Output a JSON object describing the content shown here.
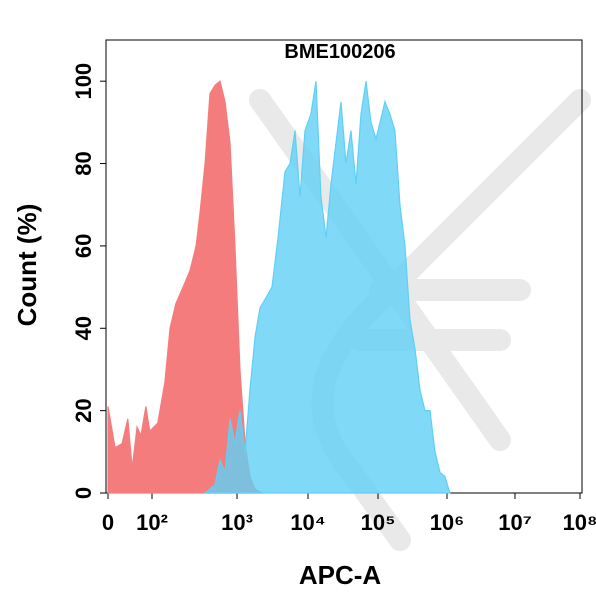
{
  "chart_data": {
    "type": "area",
    "title": "BME100206",
    "x_label": "APC-A",
    "y_label": "Count  (%)",
    "xlim": [
      0,
      100000000
    ],
    "ylim": [
      0,
      110
    ],
    "xticks": [
      0,
      {
        "value": 100,
        "label": "10²"
      },
      {
        "value": 1000,
        "label": "10³"
      },
      {
        "value": 10000,
        "label": "10⁴"
      },
      {
        "value": 100000,
        "label": "10⁵"
      },
      {
        "value": 1000000,
        "label": "10⁶"
      },
      {
        "value": 10000000,
        "label": "10⁷"
      },
      {
        "value": 100000000,
        "label": "10⁸"
      }
    ],
    "yticks": [
      0,
      20,
      40,
      60,
      80,
      100
    ],
    "series": [
      {
        "color": "#f47c7c",
        "x": [
          0,
          16,
          32,
          45,
          55,
          66,
          75,
          86,
          95,
          117,
          142,
          163,
          191,
          232,
          280,
          330,
          367,
          421,
          481,
          551,
          631,
          723,
          828,
          946,
          1100,
          1300,
          1520,
          1780,
          2240
        ],
        "values": [
          21,
          11,
          12,
          18,
          6,
          16,
          14,
          21,
          15,
          17,
          27,
          40,
          46,
          50,
          54,
          60,
          68,
          80,
          97,
          99,
          100,
          95,
          85,
          60,
          30,
          12,
          4,
          1,
          0
        ]
      },
      {
        "color": "#5fd0f5",
        "x": [
          421,
          551,
          631,
          723,
          828,
          946,
          1100,
          1300,
          1520,
          1800,
          2110,
          2480,
          3110,
          3780,
          4740,
          5580,
          6560,
          7710,
          9070,
          11000,
          13000,
          15300,
          18100,
          21300,
          25100,
          29600,
          34900,
          41100,
          48500,
          57100,
          67400,
          79400,
          93600,
          107000,
          126000,
          149000,
          176000,
          208000,
          246000,
          291000,
          344000,
          406000,
          480000,
          567000,
          670000,
          792000,
          935000,
          1100000
        ],
        "values": [
          0,
          2,
          8,
          5,
          18,
          12,
          20,
          10,
          25,
          38,
          45,
          47,
          50,
          62,
          78,
          80,
          88,
          72,
          88,
          92,
          100,
          72,
          62,
          75,
          85,
          95,
          80,
          88,
          75,
          92,
          100,
          90,
          86,
          90,
          95,
          92,
          88,
          70,
          60,
          42,
          35,
          25,
          20,
          20,
          10,
          5,
          4,
          0
        ]
      }
    ]
  }
}
